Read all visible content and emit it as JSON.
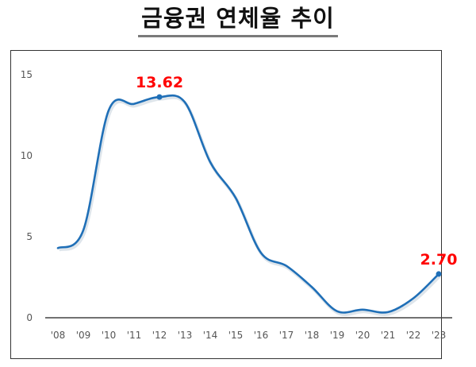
{
  "title": "금융권 연체율 추이",
  "chart_data": {
    "type": "line",
    "title": "금융권 연체율 추이",
    "xlabel": "",
    "ylabel": "",
    "categories": [
      "'08",
      "'09",
      "'10",
      "'11",
      "'12",
      "'13",
      "'14",
      "'15",
      "'16",
      "'17",
      "'18",
      "'19",
      "'20",
      "'21",
      "'22",
      "'23"
    ],
    "series": [
      {
        "name": "연체율",
        "color": "#1f6fb7",
        "values": [
          4.3,
          5.4,
          12.8,
          13.2,
          13.62,
          13.3,
          9.6,
          7.4,
          4.0,
          3.2,
          1.9,
          0.4,
          0.5,
          0.35,
          1.2,
          2.7
        ]
      }
    ],
    "annotations": [
      {
        "category": "'12",
        "value": 13.62,
        "label": "13.62",
        "color": "#ff0000"
      },
      {
        "category": "'23",
        "value": 2.7,
        "label": "2.70",
        "color": "#ff0000"
      }
    ],
    "yticks": [
      0,
      5,
      10,
      15
    ],
    "ylim": [
      0,
      15
    ],
    "grid": false,
    "legend": "none"
  }
}
